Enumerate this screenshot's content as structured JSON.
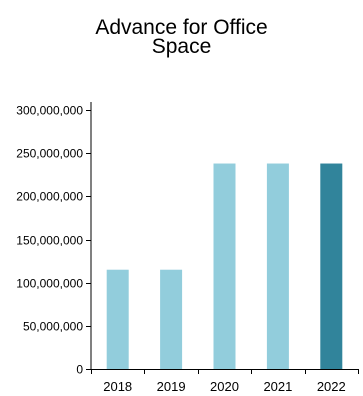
{
  "chart_data": {
    "type": "bar",
    "title_lines": [
      "Advance for Office",
      "Space"
    ],
    "xlabel": "",
    "ylabel": "",
    "categories": [
      "2018",
      "2019",
      "2020",
      "2021",
      "2022"
    ],
    "values": [
      115000000,
      115000000,
      238000000,
      238000000,
      238000000
    ],
    "bar_colors": [
      "#92cddc",
      "#92cddc",
      "#92cddc",
      "#92cddc",
      "#31849b"
    ],
    "ylim": [
      0,
      300000000
    ],
    "y_ticks": [
      0,
      50000000,
      100000000,
      150000000,
      200000000,
      250000000,
      300000000
    ],
    "y_tick_labels": [
      "0",
      "50,000,000",
      "100,000,000",
      "150,000,000",
      "200,000,000",
      "250,000,000",
      "300,000,000"
    ],
    "grid": false,
    "legend": "none",
    "axis_color": "#000000"
  }
}
